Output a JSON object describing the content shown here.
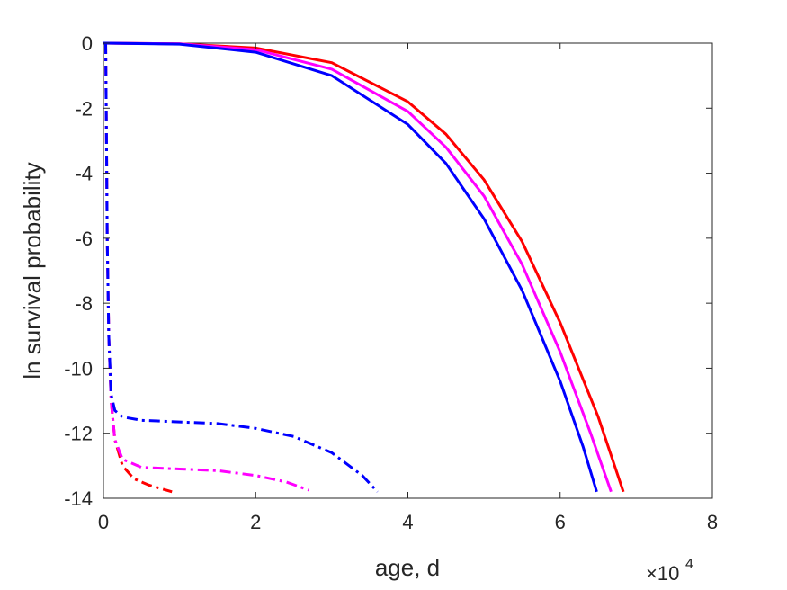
{
  "chart_data": {
    "type": "line",
    "xlabel": "age, d",
    "ylabel": "ln survival probability",
    "x_exponent_label": {
      "base": "×10",
      "exponent": "4"
    },
    "xlim": [
      0,
      80000
    ],
    "ylim": [
      -14,
      0
    ],
    "x_ticks": [
      0,
      20000,
      40000,
      60000,
      80000
    ],
    "x_tick_labels": [
      "0",
      "2",
      "4",
      "6",
      "8"
    ],
    "y_ticks": [
      0,
      -2,
      -4,
      -6,
      -8,
      -10,
      -12,
      -14
    ],
    "y_tick_labels": [
      "0",
      "-2",
      "-4",
      "-6",
      "-8",
      "-10",
      "-12",
      "-14"
    ],
    "grid": false,
    "box": true,
    "series": [
      {
        "color": "#ff0000",
        "style": "solid",
        "points": [
          [
            0,
            0
          ],
          [
            10000,
            -0.02
          ],
          [
            20000,
            -0.15
          ],
          [
            30000,
            -0.6
          ],
          [
            40000,
            -1.8
          ],
          [
            45000,
            -2.8
          ],
          [
            50000,
            -4.2
          ],
          [
            55000,
            -6.1
          ],
          [
            60000,
            -8.6
          ],
          [
            65000,
            -11.5
          ],
          [
            68300,
            -13.8
          ]
        ]
      },
      {
        "color": "#ff00ff",
        "style": "solid",
        "points": [
          [
            0,
            0
          ],
          [
            10000,
            -0.02
          ],
          [
            20000,
            -0.2
          ],
          [
            30000,
            -0.8
          ],
          [
            40000,
            -2.1
          ],
          [
            45000,
            -3.2
          ],
          [
            50000,
            -4.7
          ],
          [
            55000,
            -6.8
          ],
          [
            60000,
            -9.5
          ],
          [
            64000,
            -12.0
          ],
          [
            66700,
            -13.8
          ]
        ]
      },
      {
        "color": "#0000ff",
        "style": "solid",
        "points": [
          [
            0,
            0
          ],
          [
            10000,
            -0.03
          ],
          [
            20000,
            -0.28
          ],
          [
            30000,
            -1.0
          ],
          [
            40000,
            -2.5
          ],
          [
            45000,
            -3.7
          ],
          [
            50000,
            -5.4
          ],
          [
            55000,
            -7.6
          ],
          [
            60000,
            -10.4
          ],
          [
            63000,
            -12.4
          ],
          [
            64800,
            -13.8
          ]
        ]
      },
      {
        "color": "#ff0000",
        "style": "dashdot",
        "points": [
          [
            300,
            0
          ],
          [
            400,
            -3
          ],
          [
            500,
            -6
          ],
          [
            700,
            -9
          ],
          [
            1000,
            -11
          ],
          [
            1500,
            -12.2
          ],
          [
            2500,
            -13.0
          ],
          [
            4000,
            -13.4
          ],
          [
            6000,
            -13.6
          ],
          [
            9000,
            -13.8
          ]
        ]
      },
      {
        "color": "#ff00ff",
        "style": "dashdot",
        "points": [
          [
            300,
            0
          ],
          [
            400,
            -3
          ],
          [
            500,
            -6
          ],
          [
            700,
            -9
          ],
          [
            1000,
            -11
          ],
          [
            1500,
            -12.2
          ],
          [
            2500,
            -12.8
          ],
          [
            5000,
            -13.05
          ],
          [
            10000,
            -13.1
          ],
          [
            15000,
            -13.15
          ],
          [
            20000,
            -13.3
          ],
          [
            24000,
            -13.5
          ],
          [
            27000,
            -13.75
          ]
        ]
      },
      {
        "color": "#0000ff",
        "style": "dashdot",
        "points": [
          [
            300,
            0
          ],
          [
            400,
            -3
          ],
          [
            500,
            -6
          ],
          [
            700,
            -9
          ],
          [
            1000,
            -10.8
          ],
          [
            1500,
            -11.3
          ],
          [
            2500,
            -11.5
          ],
          [
            5000,
            -11.6
          ],
          [
            10000,
            -11.65
          ],
          [
            15000,
            -11.7
          ],
          [
            20000,
            -11.85
          ],
          [
            25000,
            -12.1
          ],
          [
            30000,
            -12.6
          ],
          [
            34000,
            -13.3
          ],
          [
            36000,
            -13.8
          ]
        ]
      }
    ]
  }
}
